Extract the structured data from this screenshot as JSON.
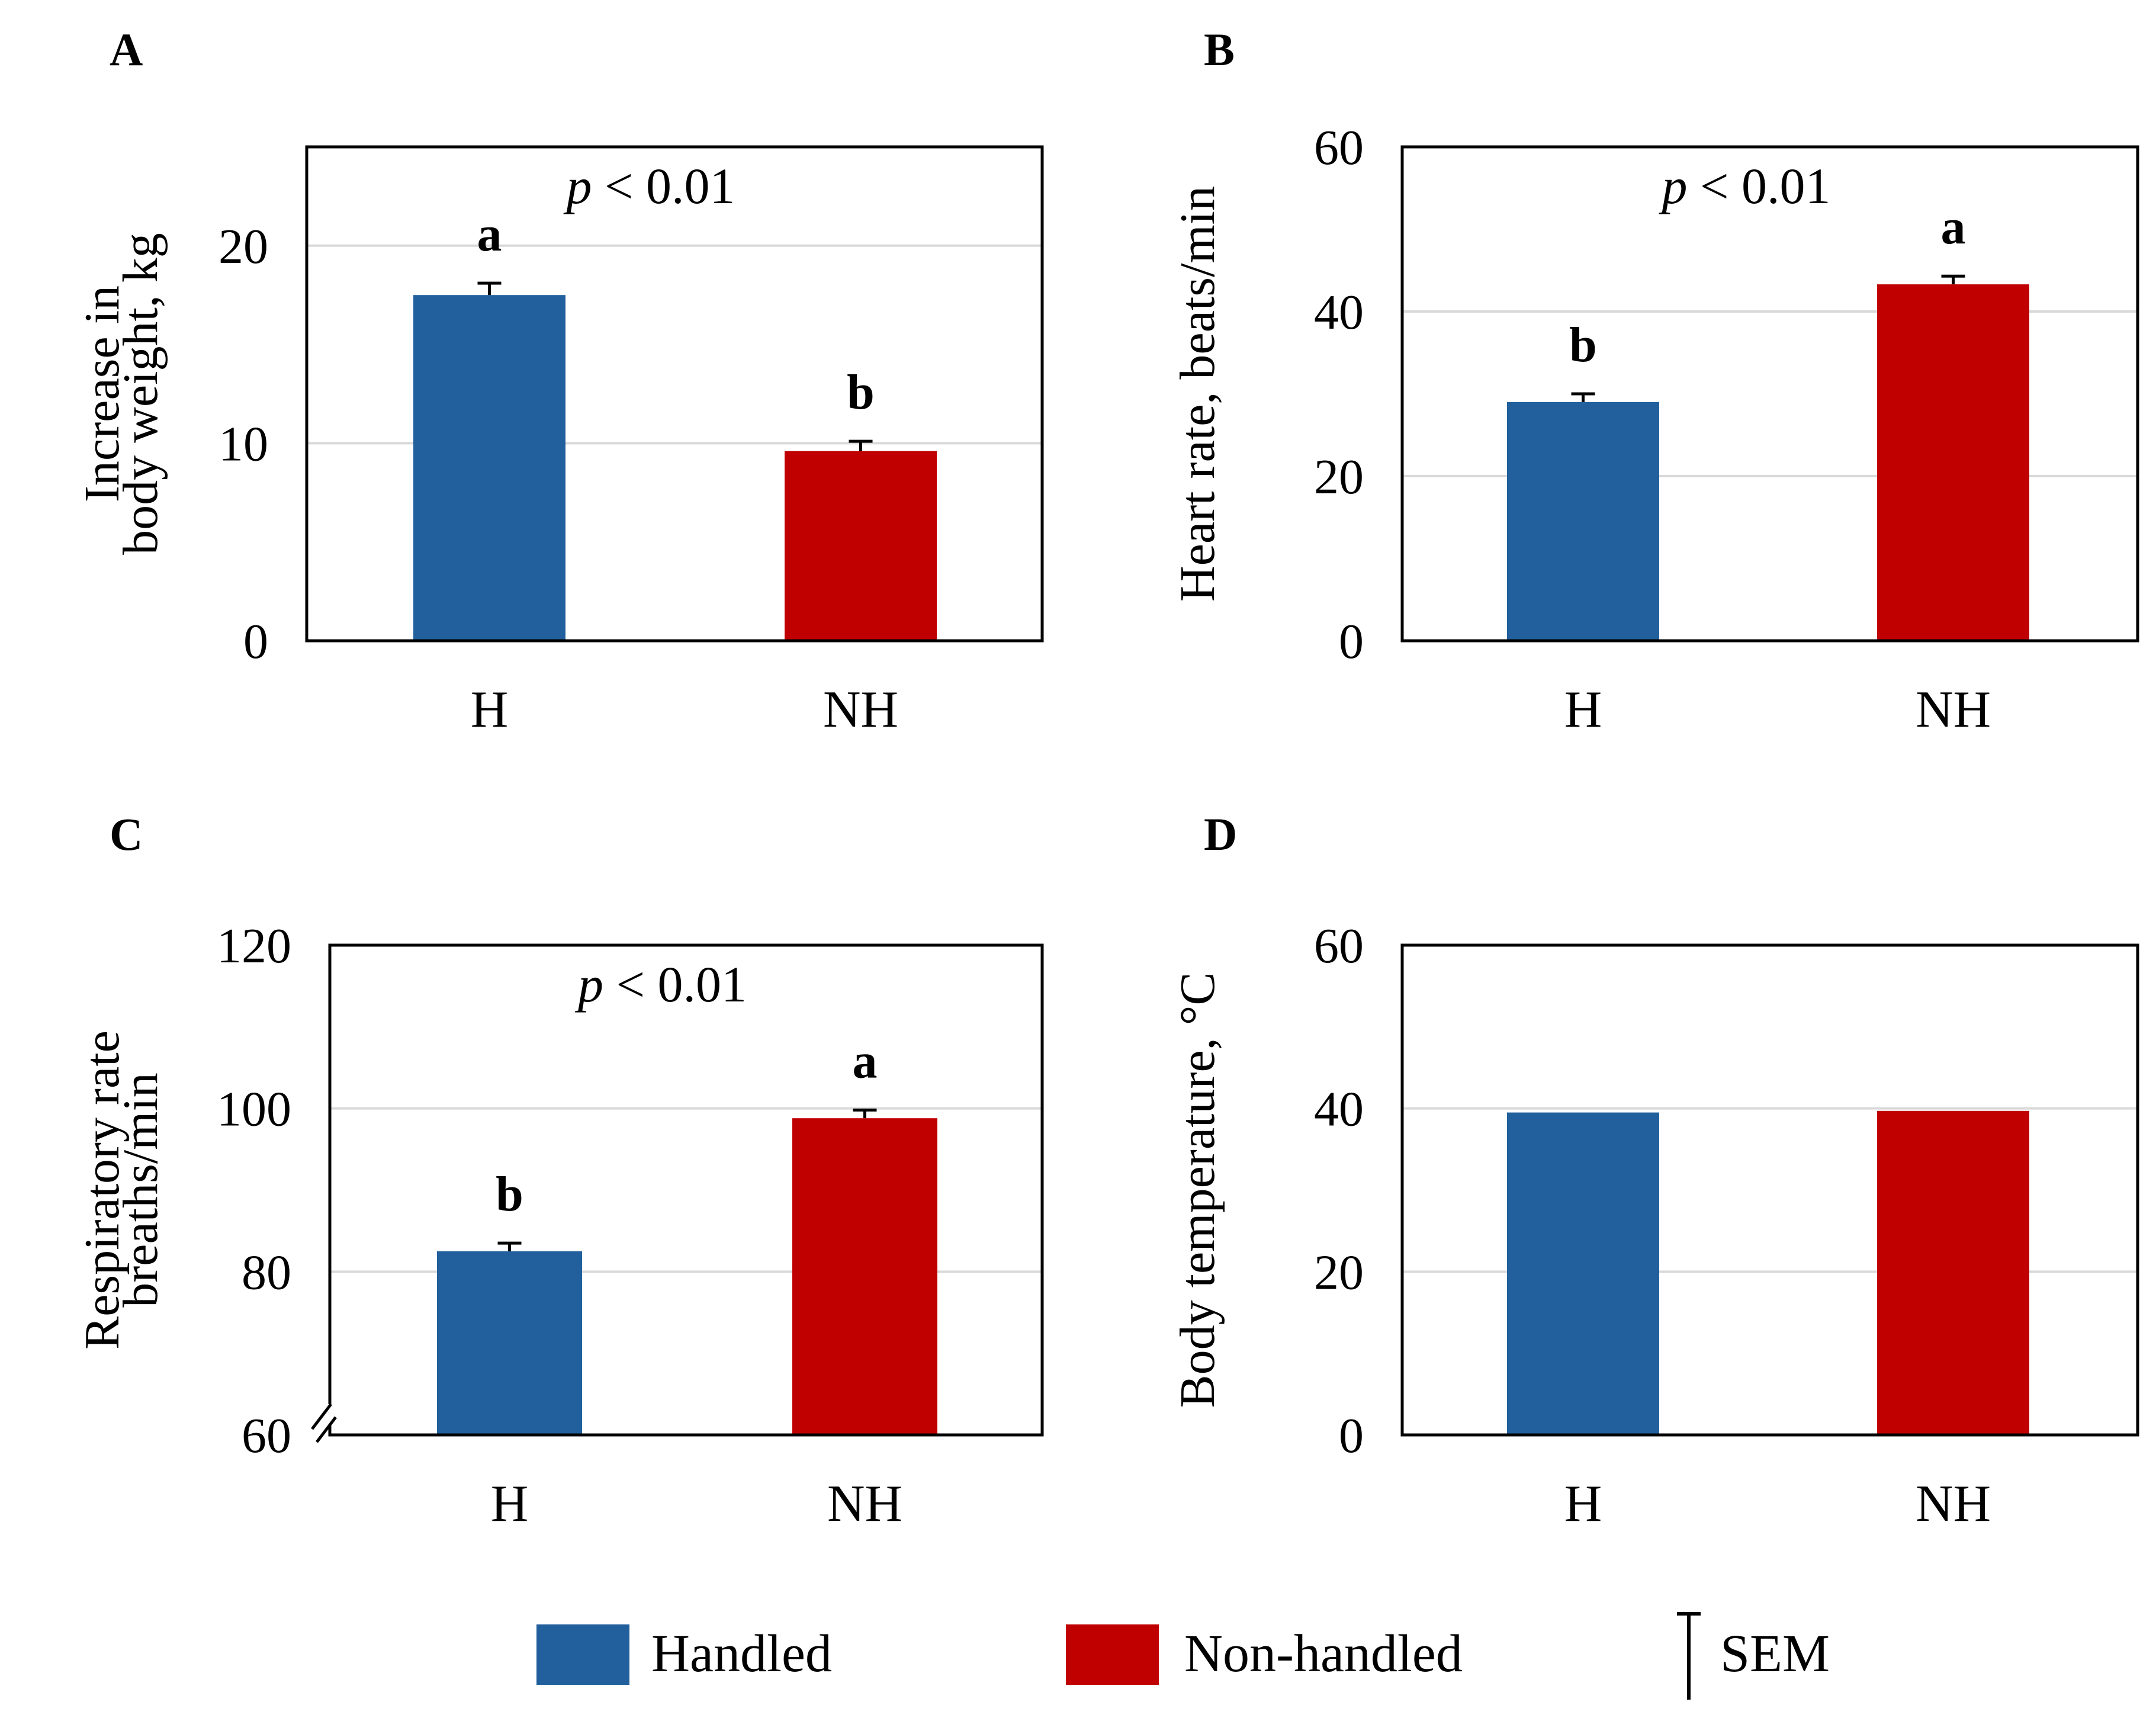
{
  "colors": {
    "handled": "#21609C",
    "non_handled": "#C00000",
    "grid": "#D9D9D9",
    "axis": "#000000"
  },
  "legend": {
    "handled": "Handled",
    "non_handled": "Non-handled",
    "sem": "SEM"
  },
  "chart_data": [
    {
      "panel": "A",
      "type": "bar",
      "categories": [
        "H",
        "NH"
      ],
      "values": [
        17.5,
        9.6
      ],
      "sem": [
        0.6,
        0.5
      ],
      "significance": [
        "a",
        "b"
      ],
      "annotation": {
        "italic": "p",
        "rest": " < 0.01"
      },
      "ylabel_lines": [
        "Increase in",
        "body weight, kg"
      ],
      "ylim": [
        0,
        25
      ],
      "yticks": [
        0,
        10,
        20
      ],
      "grid": true
    },
    {
      "panel": "B",
      "type": "bar",
      "categories": [
        "H",
        "NH"
      ],
      "values": [
        29,
        43.3
      ],
      "sem": [
        1.0,
        1.0
      ],
      "significance": [
        "b",
        "a"
      ],
      "annotation": {
        "italic": "p",
        "rest": " < 0.01"
      },
      "ylabel_lines": [
        "Heart rate, beats/min"
      ],
      "ylim": [
        0,
        60
      ],
      "yticks": [
        0,
        20,
        40,
        60
      ],
      "grid": true
    },
    {
      "panel": "C",
      "type": "bar",
      "categories": [
        "H",
        "NH"
      ],
      "values": [
        82.5,
        98.8
      ],
      "sem": [
        1.0,
        1.0
      ],
      "significance": [
        "b",
        "a"
      ],
      "annotation": {
        "italic": "p",
        "rest": " < 0.01"
      },
      "ylabel_lines": [
        "Respiratory rate",
        "breaths/min"
      ],
      "ylim": [
        60,
        120
      ],
      "yticks": [
        60,
        80,
        100,
        120
      ],
      "axis_break": true,
      "grid": true
    },
    {
      "panel": "D",
      "type": "bar",
      "categories": [
        "H",
        "NH"
      ],
      "values": [
        39.5,
        39.7
      ],
      "sem": [
        0,
        0
      ],
      "significance": [
        "",
        ""
      ],
      "ylabel_lines": [
        "Body temperature, °C"
      ],
      "ylim": [
        0,
        60
      ],
      "yticks": [
        0,
        20,
        40,
        60
      ],
      "grid": true
    }
  ]
}
